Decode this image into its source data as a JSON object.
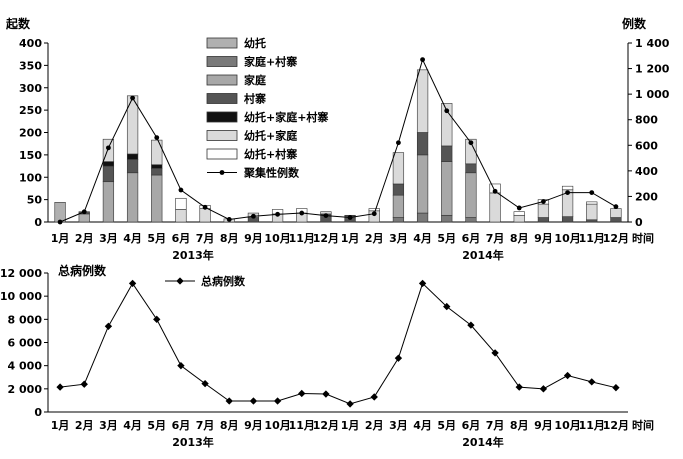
{
  "chart_data": [
    {
      "type": "bar",
      "stacked": true,
      "categories": [
        "1月",
        "2月",
        "3月",
        "4月",
        "5月",
        "6月",
        "7月",
        "8月",
        "9月",
        "10月",
        "11月",
        "12月",
        "1月",
        "2月",
        "3月",
        "4月",
        "5月",
        "6月",
        "7月",
        "8月",
        "9月",
        "10月",
        "11月",
        "12月"
      ],
      "year_labels": [
        "2013年",
        "2014年"
      ],
      "ylabel_left": "起数",
      "ylabel_right": "例数",
      "xlabel": "时间",
      "ylim_left": [
        0,
        400
      ],
      "ylim_right": [
        0,
        1400
      ],
      "yticks_left": [
        "0",
        "50",
        "100",
        "150",
        "200",
        "250",
        "300",
        "350",
        "400"
      ],
      "yticks_right": [
        "0",
        "200",
        "400",
        "600",
        "800",
        "1 000",
        "1 200",
        "1 400"
      ],
      "legend_position": "top-center",
      "series": [
        {
          "name": "幼托",
          "axis": "left",
          "fill": "#b0b0b0",
          "values": [
            44,
            18,
            0,
            0,
            0,
            0,
            0,
            0,
            0,
            0,
            0,
            0,
            0,
            0,
            0,
            0,
            0,
            0,
            0,
            0,
            0,
            0,
            0,
            0
          ]
        },
        {
          "name": "家庭+村寨",
          "axis": "left",
          "fill": "#7a7a7a",
          "values": [
            0,
            0,
            0,
            0,
            0,
            0,
            0,
            0,
            0,
            0,
            0,
            0,
            0,
            0,
            10,
            20,
            15,
            10,
            0,
            0,
            0,
            0,
            0,
            0
          ]
        },
        {
          "name": "家庭",
          "axis": "left",
          "fill": "#a8a8a8",
          "values": [
            0,
            0,
            90,
            110,
            105,
            0,
            0,
            0,
            0,
            0,
            0,
            0,
            0,
            0,
            50,
            130,
            120,
            100,
            0,
            0,
            0,
            0,
            0,
            0
          ]
        },
        {
          "name": "村寨",
          "axis": "left",
          "fill": "#555555",
          "values": [
            0,
            5,
            35,
            30,
            15,
            0,
            0,
            0,
            10,
            0,
            0,
            18,
            15,
            0,
            25,
            50,
            35,
            20,
            0,
            0,
            10,
            12,
            5,
            10
          ]
        },
        {
          "name": "幼托+家庭+村寨",
          "axis": "left",
          "fill": "#111111",
          "values": [
            0,
            0,
            10,
            12,
            8,
            0,
            0,
            0,
            0,
            0,
            0,
            0,
            0,
            0,
            0,
            0,
            0,
            0,
            0,
            0,
            0,
            0,
            0,
            0
          ]
        },
        {
          "name": "幼托+家庭",
          "axis": "left",
          "fill": "#dadada",
          "values": [
            0,
            0,
            50,
            130,
            55,
            28,
            30,
            7,
            10,
            18,
            20,
            5,
            0,
            25,
            70,
            140,
            95,
            55,
            65,
            15,
            30,
            60,
            35,
            20
          ]
        },
        {
          "name": "幼托+村寨",
          "axis": "left",
          "fill": "#ffffff",
          "values": [
            0,
            0,
            0,
            0,
            0,
            25,
            7,
            0,
            0,
            10,
            10,
            0,
            0,
            5,
            0,
            0,
            0,
            0,
            20,
            8,
            10,
            8,
            5,
            0
          ]
        },
        {
          "name": "聚集性例数",
          "axis": "right",
          "kind": "line",
          "values": [
            0,
            80,
            580,
            970,
            660,
            250,
            115,
            20,
            45,
            60,
            70,
            50,
            35,
            65,
            620,
            1270,
            870,
            620,
            240,
            110,
            160,
            230,
            230,
            120
          ]
        }
      ]
    },
    {
      "type": "line",
      "categories": [
        "1月",
        "2月",
        "3月",
        "4月",
        "5月",
        "6月",
        "7月",
        "8月",
        "9月",
        "10月",
        "11月",
        "12月",
        "1月",
        "2月",
        "3月",
        "4月",
        "5月",
        "6月",
        "7月",
        "8月",
        "9月",
        "10月",
        "11月",
        "12月"
      ],
      "year_labels": [
        "2013年",
        "2014年"
      ],
      "ylabel": "总病例数",
      "xlabel": "时间",
      "ylim": [
        0,
        12000
      ],
      "yticks": [
        "0",
        "2 000",
        "4 000",
        "6 000",
        "8 000",
        "10 000",
        "12 000"
      ],
      "legend_position": "top-left",
      "series": [
        {
          "name": "总病例数",
          "values": [
            2150,
            2400,
            7400,
            11100,
            8000,
            4000,
            2450,
            950,
            950,
            950,
            1600,
            1550,
            700,
            1300,
            4650,
            11100,
            9100,
            7500,
            5100,
            2150,
            2000,
            3150,
            2600,
            2100
          ]
        }
      ]
    }
  ]
}
